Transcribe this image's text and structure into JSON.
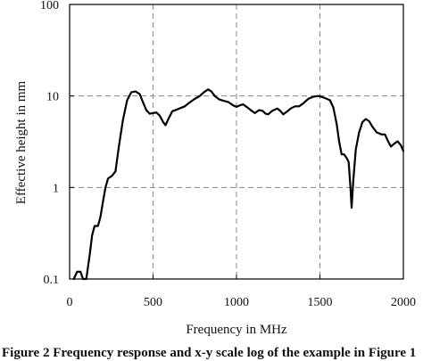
{
  "chart_data": {
    "type": "line",
    "title": "",
    "xlabel": "Frequency in MHz",
    "ylabel": "Effective height in mm",
    "x_ticks": [
      "0",
      "500",
      "1000",
      "1500",
      "2000"
    ],
    "y_ticks": [
      "0.1",
      "1",
      "10",
      "100"
    ],
    "xlim": [
      0,
      2000
    ],
    "ylim": [
      0.1,
      100
    ],
    "yscale": "log",
    "grid": "dashed at major ticks",
    "legend": "none",
    "series": [
      {
        "color": "#000000",
        "points": [
          [
            25,
            0.1
          ],
          [
            45,
            0.12
          ],
          [
            65,
            0.12
          ],
          [
            80,
            0.1
          ],
          [
            100,
            0.1
          ],
          [
            120,
            0.18
          ],
          [
            135,
            0.3
          ],
          [
            150,
            0.38
          ],
          [
            170,
            0.38
          ],
          [
            185,
            0.48
          ],
          [
            200,
            0.7
          ],
          [
            215,
            1.0
          ],
          [
            230,
            1.25
          ],
          [
            255,
            1.35
          ],
          [
            275,
            1.5
          ],
          [
            295,
            2.8
          ],
          [
            320,
            5.5
          ],
          [
            345,
            9.0
          ],
          [
            370,
            11.0
          ],
          [
            395,
            11.2
          ],
          [
            420,
            10.5
          ],
          [
            440,
            8.5
          ],
          [
            460,
            7.0
          ],
          [
            480,
            6.4
          ],
          [
            500,
            6.5
          ],
          [
            520,
            6.6
          ],
          [
            540,
            6.1
          ],
          [
            560,
            5.2
          ],
          [
            575,
            4.8
          ],
          [
            590,
            5.5
          ],
          [
            615,
            6.8
          ],
          [
            650,
            7.2
          ],
          [
            690,
            7.7
          ],
          [
            720,
            8.5
          ],
          [
            750,
            9.3
          ],
          [
            780,
            10.0
          ],
          [
            805,
            11.0
          ],
          [
            830,
            11.8
          ],
          [
            850,
            11.2
          ],
          [
            870,
            10.0
          ],
          [
            895,
            9.2
          ],
          [
            920,
            8.9
          ],
          [
            950,
            8.6
          ],
          [
            980,
            7.9
          ],
          [
            1000,
            7.6
          ],
          [
            1020,
            7.9
          ],
          [
            1040,
            8.1
          ],
          [
            1065,
            7.5
          ],
          [
            1090,
            6.9
          ],
          [
            1110,
            6.5
          ],
          [
            1135,
            7.0
          ],
          [
            1155,
            6.9
          ],
          [
            1175,
            6.4
          ],
          [
            1190,
            6.3
          ],
          [
            1215,
            6.9
          ],
          [
            1245,
            7.3
          ],
          [
            1265,
            6.8
          ],
          [
            1280,
            6.3
          ],
          [
            1305,
            6.8
          ],
          [
            1325,
            7.3
          ],
          [
            1350,
            7.7
          ],
          [
            1375,
            7.7
          ],
          [
            1400,
            8.3
          ],
          [
            1430,
            9.3
          ],
          [
            1460,
            9.8
          ],
          [
            1490,
            10.0
          ],
          [
            1510,
            9.8
          ],
          [
            1535,
            9.4
          ],
          [
            1560,
            9.0
          ],
          [
            1580,
            7.5
          ],
          [
            1600,
            5.0
          ],
          [
            1615,
            3.2
          ],
          [
            1630,
            2.3
          ],
          [
            1645,
            2.3
          ],
          [
            1660,
            2.1
          ],
          [
            1672,
            1.9
          ],
          [
            1683,
            1.0
          ],
          [
            1690,
            0.6
          ],
          [
            1700,
            1.2
          ],
          [
            1715,
            2.6
          ],
          [
            1735,
            4.0
          ],
          [
            1755,
            5.2
          ],
          [
            1775,
            5.6
          ],
          [
            1795,
            5.3
          ],
          [
            1815,
            4.6
          ],
          [
            1840,
            4.0
          ],
          [
            1870,
            3.8
          ],
          [
            1890,
            3.8
          ],
          [
            1905,
            3.3
          ],
          [
            1925,
            2.8
          ],
          [
            1945,
            3.0
          ],
          [
            1965,
            3.2
          ],
          [
            1985,
            2.9
          ],
          [
            2000,
            2.5
          ]
        ]
      }
    ]
  },
  "caption": {
    "text": "Figure 2  Frequency response and x-y scale log of the example in Figure 1"
  }
}
